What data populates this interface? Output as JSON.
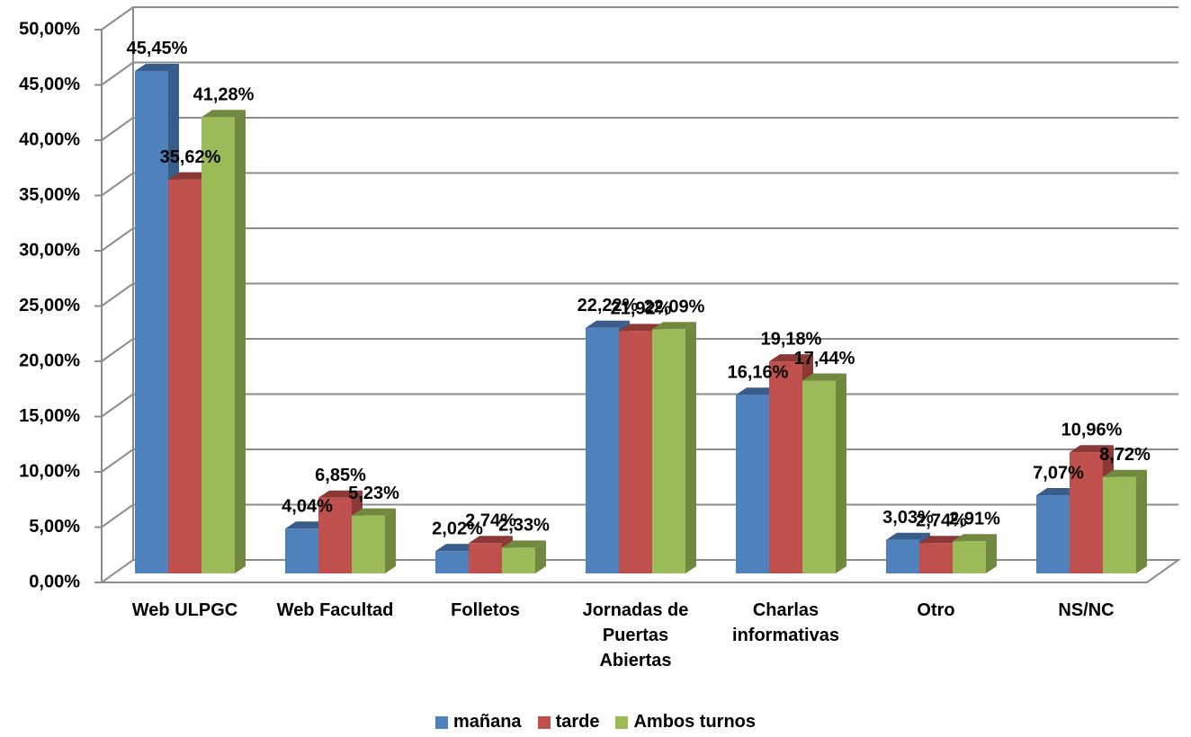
{
  "chart_data": {
    "type": "bar3d",
    "categories": [
      "Web ULPGC",
      "Web Facultad",
      "Folletos",
      "Jornadas de Puertas Abiertas",
      "Charlas informativas",
      "Otro",
      "NS/NC"
    ],
    "series": [
      {
        "name": "mañana",
        "color": "#4f81bd",
        "side_color": "#385d8a",
        "values": [
          45.45,
          4.04,
          2.02,
          22.22,
          16.16,
          3.03,
          7.07
        ],
        "value_labels": [
          "45,45%",
          "4,04%",
          "2,02%",
          "22,22%",
          "16,16%",
          "3,03%",
          "7,07%"
        ]
      },
      {
        "name": "tarde",
        "color": "#c0504d",
        "side_color": "#8c3836",
        "values": [
          35.62,
          6.85,
          2.74,
          21.92,
          19.18,
          2.74,
          10.96
        ],
        "value_labels": [
          "35,62%",
          "6,85%",
          "2,74%",
          "21,92%",
          "19,18%",
          "2,74%",
          "10,96%"
        ]
      },
      {
        "name": "Ambos turnos",
        "color": "#9bbb59",
        "side_color": "#71893f",
        "values": [
          41.28,
          5.23,
          2.33,
          22.09,
          17.44,
          2.91,
          8.72
        ],
        "value_labels": [
          "41,28%",
          "5,23%",
          "2,33%",
          "22,09%",
          "17,44%",
          "2,91%",
          "8,72%"
        ]
      }
    ],
    "ylim": [
      0,
      50
    ],
    "yticks": [
      {
        "value": 0,
        "label": "0,00%"
      },
      {
        "value": 5,
        "label": "5,00%"
      },
      {
        "value": 10,
        "label": "10,00%"
      },
      {
        "value": 15,
        "label": "15,00%"
      },
      {
        "value": 20,
        "label": "20,00%"
      },
      {
        "value": 25,
        "label": "25,00%"
      },
      {
        "value": 30,
        "label": "30,00%"
      },
      {
        "value": 35,
        "label": "35,00%"
      },
      {
        "value": 40,
        "label": "40,00%"
      },
      {
        "value": 45,
        "label": "45,00%"
      },
      {
        "value": 50,
        "label": "50,00%"
      }
    ],
    "grid": true,
    "legend": "bottom"
  }
}
